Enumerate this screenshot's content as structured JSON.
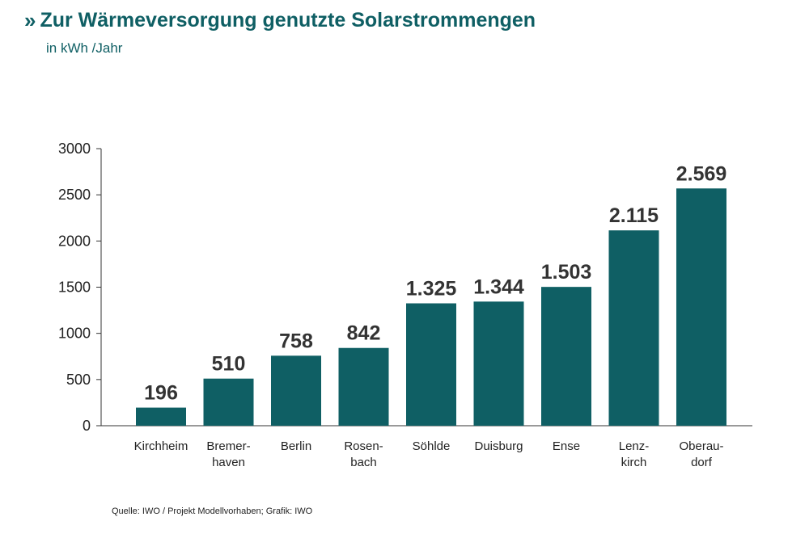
{
  "header": {
    "marker": "»",
    "title": "Zur Wärmeversorgung genutzte Solarstrommengen",
    "subtitle": "in kWh /Jahr"
  },
  "footer": {
    "source": "Quelle: IWO / Projekt Modellvorhaben; Grafik: IWO"
  },
  "colors": {
    "bar": "#0f5f64",
    "title": "#0f5f64"
  },
  "chart_data": {
    "type": "bar",
    "title": "Zur Wärmeversorgung genutzte Solarstrommengen",
    "subtitle": "in kWh /Jahr",
    "ylim": [
      0,
      3000
    ],
    "yticks": [
      0,
      500,
      1000,
      1500,
      2000,
      2500,
      3000
    ],
    "grid": false,
    "categories": [
      [
        "Kirchheim"
      ],
      [
        "Bremer-",
        "haven"
      ],
      [
        "Berlin"
      ],
      [
        "Rosen-",
        "bach"
      ],
      [
        "Söhlde"
      ],
      [
        "Duisburg"
      ],
      [
        "Ense"
      ],
      [
        "Lenz-",
        "kirch"
      ],
      [
        "Oberau-",
        "dorf"
      ]
    ],
    "values": [
      196,
      510,
      758,
      842,
      1325,
      1344,
      1503,
      2115,
      2569
    ],
    "value_labels": [
      "196",
      "510",
      "758",
      "842",
      "1.325",
      "1.344",
      "1.503",
      "2.115",
      "2.569"
    ]
  }
}
